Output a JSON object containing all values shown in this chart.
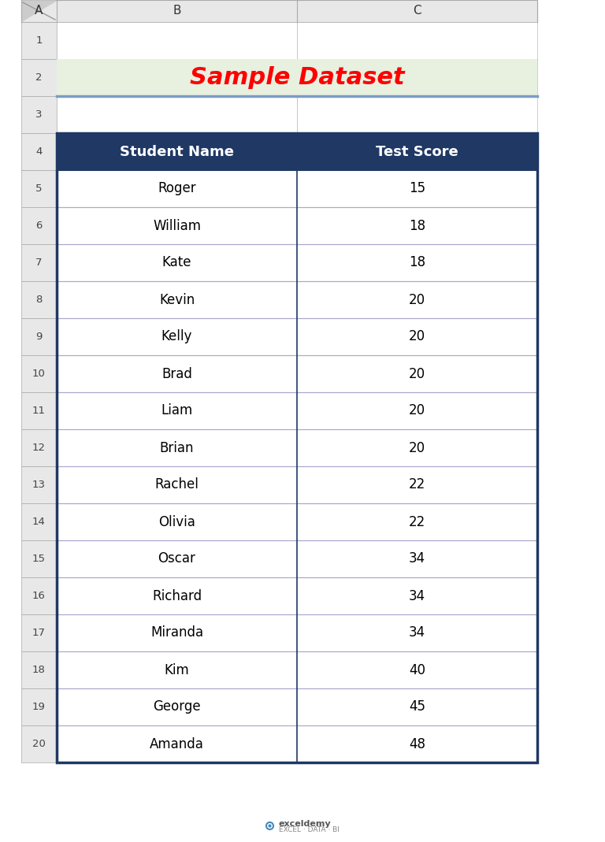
{
  "title": "Sample Dataset",
  "title_color": "#FF0000",
  "title_bg_color": "#E8F0E0",
  "title_border_color": "#7B9CC8",
  "header_bg_color": "#1F3864",
  "header_text_color": "#FFFFFF",
  "header_font_size": 13,
  "cell_font_size": 12,
  "col_headers": [
    "Student Name",
    "Test Score"
  ],
  "rows": [
    [
      "Roger",
      "15"
    ],
    [
      "William",
      "18"
    ],
    [
      "Kate",
      "18"
    ],
    [
      "Kevin",
      "20"
    ],
    [
      "Kelly",
      "20"
    ],
    [
      "Brad",
      "20"
    ],
    [
      "Liam",
      "20"
    ],
    [
      "Brian",
      "20"
    ],
    [
      "Rachel",
      "22"
    ],
    [
      "Olivia",
      "22"
    ],
    [
      "Oscar",
      "34"
    ],
    [
      "Richard",
      "34"
    ],
    [
      "Miranda",
      "34"
    ],
    [
      "Kim",
      "40"
    ],
    [
      "George",
      "45"
    ],
    [
      "Amanda",
      "48"
    ]
  ],
  "excel_col_labels": [
    "A",
    "B",
    "C"
  ],
  "excel_row_labels": [
    "1",
    "2",
    "3",
    "4",
    "5",
    "6",
    "7",
    "8",
    "9",
    "10",
    "11",
    "12",
    "13",
    "14",
    "15",
    "16",
    "17",
    "18",
    "19",
    "20"
  ],
  "grid_bg": "#FFFFFF",
  "excel_header_bg": "#E0E0E0",
  "excel_border_color": "#AAAAAA",
  "cell_border_color": "#1F3864",
  "data_line_color": "#AAAACC",
  "watermark_text1": "exceldemy",
  "watermark_text2": "EXCEL · DATA · BI",
  "watermark_color": "#888888",
  "watermark_icon_color": "#4488BB",
  "figsize": [
    7.68,
    10.69
  ],
  "dpi": 100
}
